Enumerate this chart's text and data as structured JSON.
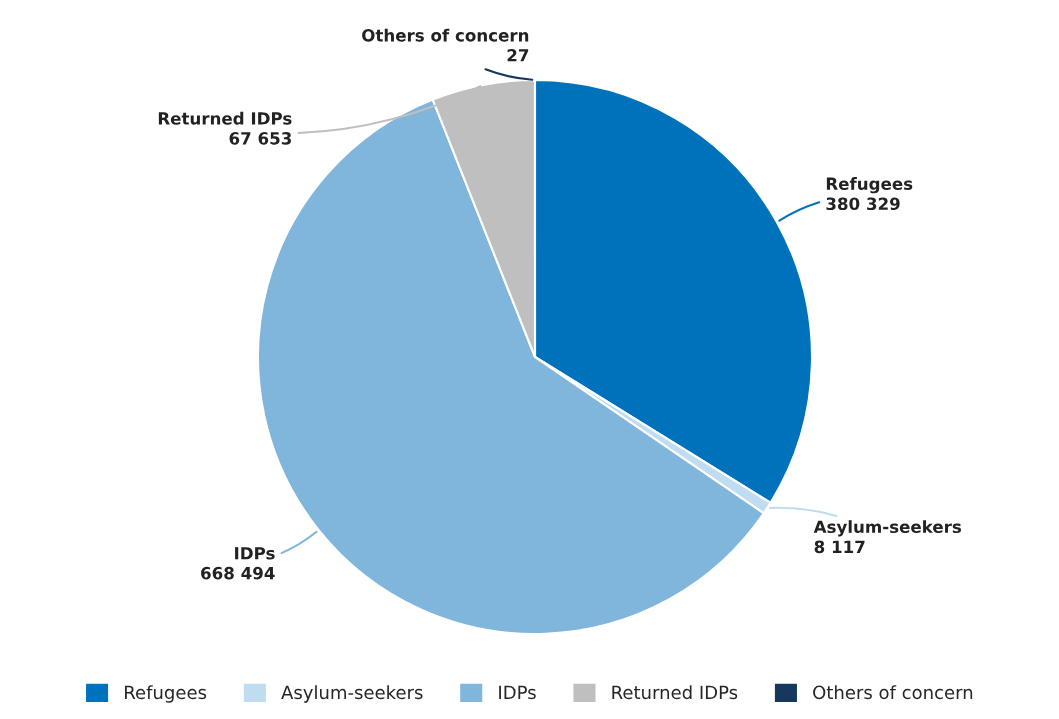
{
  "chart_data": {
    "type": "pie",
    "categories": [
      "Refugees",
      "Asylum-seekers",
      "IDPs",
      "Returned IDPs",
      "Others of concern"
    ],
    "values": [
      380329,
      8117,
      668494,
      67653,
      27
    ],
    "value_labels": [
      "380 329",
      "8 117",
      "668 494",
      "67 653",
      "27"
    ],
    "colors": [
      "#0072bc",
      "#bfdcf0",
      "#80b6dc",
      "#bfbfbf",
      "#18375f"
    ],
    "legend": "bottom"
  }
}
